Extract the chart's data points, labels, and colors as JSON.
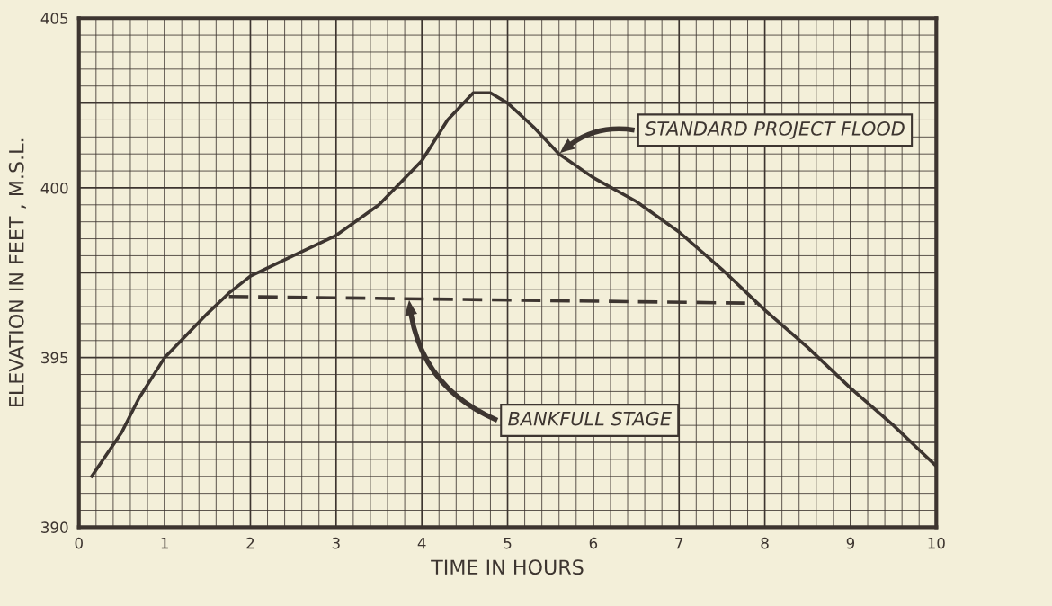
{
  "chart_data": {
    "type": "line",
    "xlabel": "TIME IN HOURS",
    "ylabel": "ELEVATION IN FEET , M.S.L.",
    "xlim": [
      0,
      10
    ],
    "ylim": [
      390,
      405
    ],
    "xticks": [
      0,
      1,
      2,
      3,
      4,
      5,
      6,
      7,
      8,
      9,
      10
    ],
    "yticks": [
      390,
      395,
      400,
      405
    ],
    "grid": true,
    "series": [
      {
        "name": "STANDARD PROJECT FLOOD",
        "color": "#3d3530",
        "line_style": "solid",
        "x": [
          0.15,
          0.5,
          0.7,
          1.0,
          1.5,
          1.75,
          2.0,
          2.5,
          3.0,
          3.5,
          4.0,
          4.3,
          4.6,
          4.8,
          5.0,
          5.3,
          5.6,
          6.0,
          6.5,
          7.0,
          7.5,
          8.0,
          8.5,
          9.0,
          9.5,
          10.0
        ],
        "values": [
          391.5,
          392.8,
          393.8,
          395.0,
          396.3,
          396.9,
          397.4,
          398.0,
          398.6,
          399.5,
          400.8,
          402.0,
          402.8,
          402.8,
          402.5,
          401.8,
          401.0,
          400.3,
          399.6,
          398.7,
          397.6,
          396.4,
          395.3,
          394.1,
          393.0,
          391.8
        ]
      },
      {
        "name": "BANKFULL STAGE",
        "color": "#3d3530",
        "line_style": "dashed",
        "x": [
          1.75,
          7.9
        ],
        "values": [
          396.8,
          396.6
        ]
      }
    ]
  }
}
